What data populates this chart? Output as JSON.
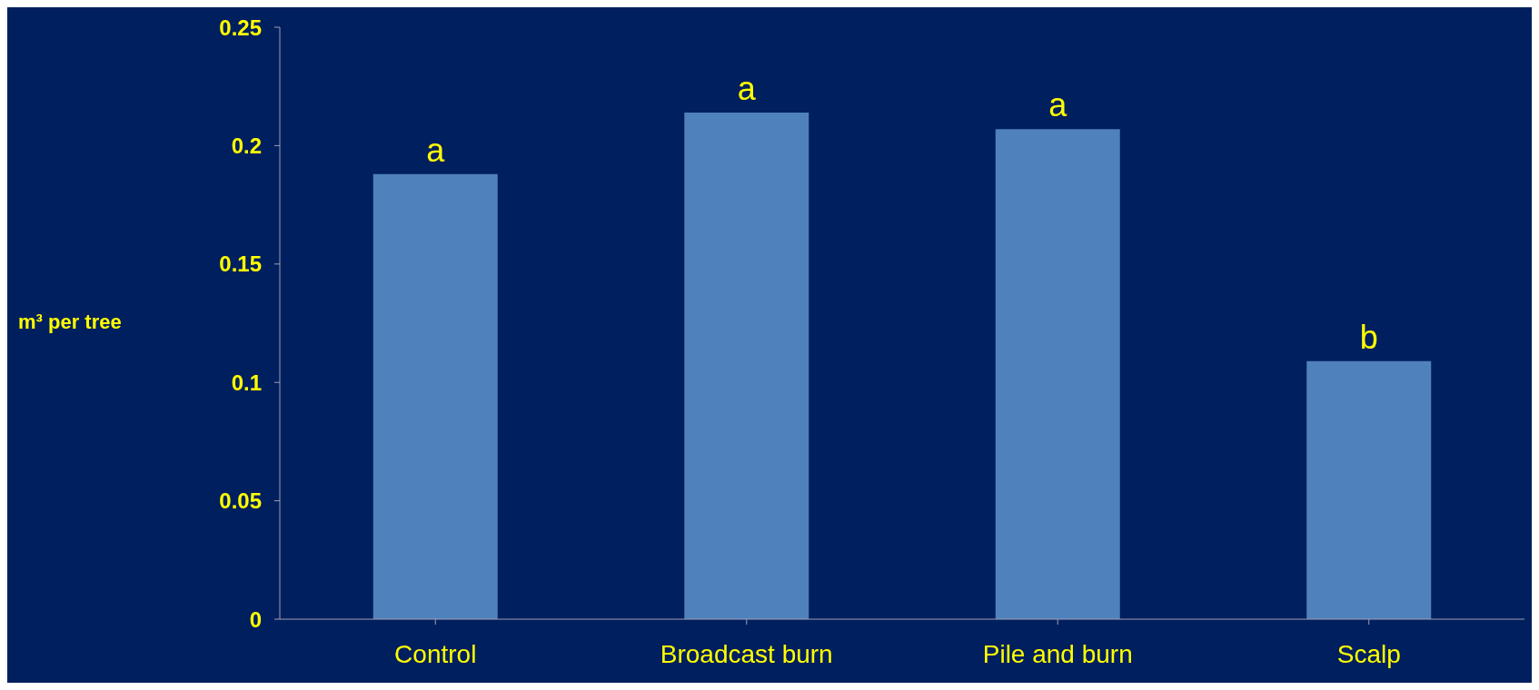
{
  "chart_data": {
    "type": "bar",
    "ylabel": "m³ per tree",
    "categories": [
      "Control",
      "Broadcast burn",
      "Pile and burn",
      "Scalp"
    ],
    "values": [
      0.188,
      0.214,
      0.207,
      0.109
    ],
    "color": "#4f81bd",
    "ylim": [
      0,
      0.25
    ],
    "yticks": [
      0,
      0.05,
      0.1,
      0.15,
      0.2,
      0.25
    ],
    "grid": false,
    "legend": false,
    "annotations": [
      {
        "text": "a",
        "x": "Control",
        "y": 0.188
      },
      {
        "text": "a",
        "x": "Broadcast burn",
        "y": 0.214
      },
      {
        "text": "a",
        "x": "Pile and burn",
        "y": 0.207
      },
      {
        "text": "b",
        "x": "Scalp",
        "y": 0.109
      }
    ]
  }
}
